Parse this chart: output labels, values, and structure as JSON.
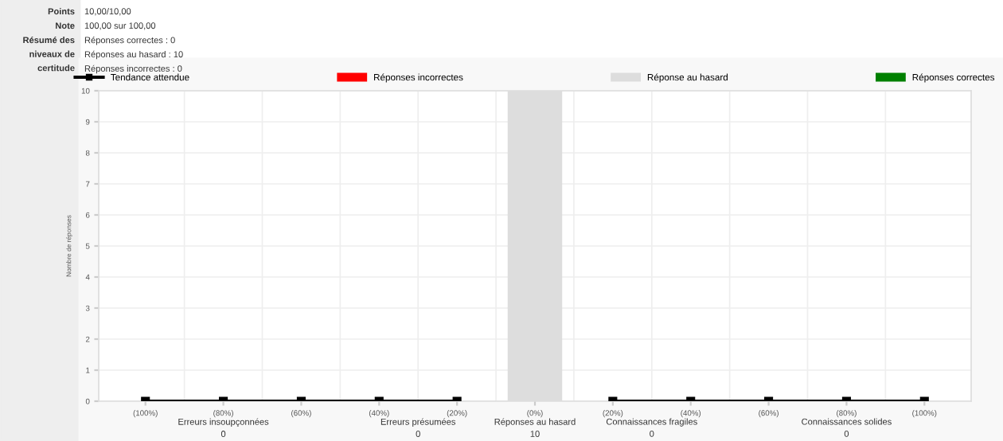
{
  "chart_data": {
    "type": "bar",
    "ylabel": "Nombre de réponses",
    "categories": [
      "(100%)",
      "(80%)",
      "(60%)",
      "(40%)",
      "(20%)",
      "(0%)",
      "(20%)",
      "(40%)",
      "(60%)",
      "(80%)",
      "(100%)"
    ],
    "series": [
      {
        "name": "Tendance attendue",
        "type": "line",
        "color": "#000000",
        "marker": "square",
        "values": [
          0,
          0,
          0,
          0,
          0,
          null,
          0,
          0,
          0,
          0,
          0
        ]
      },
      {
        "name": "Réponses incorrectes",
        "color": "#ff0000",
        "values": [
          null,
          null,
          null,
          null,
          null,
          null,
          null,
          null,
          null,
          null,
          null
        ]
      },
      {
        "name": "Réponse au hasard",
        "color": "#dddddd",
        "values": [
          null,
          null,
          null,
          null,
          null,
          10,
          null,
          null,
          null,
          null,
          null
        ]
      },
      {
        "name": "Réponses correctes",
        "color": "#008000",
        "values": [
          null,
          null,
          null,
          null,
          null,
          null,
          null,
          null,
          null,
          null,
          null
        ]
      }
    ],
    "ylim": [
      0,
      10
    ],
    "yticks": [
      0,
      1,
      2,
      3,
      4,
      5,
      6,
      7,
      8,
      9,
      10
    ],
    "grid": true,
    "legend": "top",
    "annotations": [
      "Points",
      "10,00/10,00",
      "Note",
      "100,00 sur 100,00",
      "Résumé des\nniveaux de\ncertitude",
      "Réponses correctes : 0\nRéponses au hasard : 10\nRéponses incorrectes : 0",
      "Erreurs insoupçonnées\n0",
      "Erreurs présumées\n0",
      "Réponses au hasard\n10",
      "Connaissances fragiles\n0",
      "Connaissances solides\n0"
    ]
  }
}
